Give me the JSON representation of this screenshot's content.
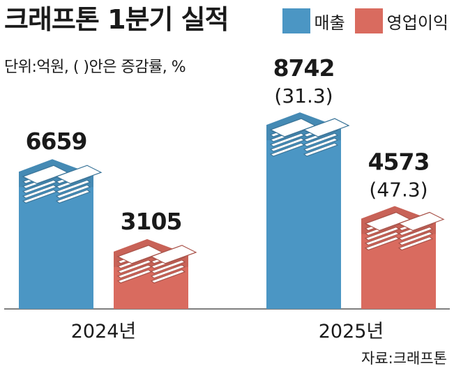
{
  "header": {
    "title": "크래프톤 1분기 실적",
    "unit_note": "단위:억원, (    )안은 증감률, %"
  },
  "legend": [
    {
      "name": "매출",
      "color": "#4b96c4"
    },
    {
      "name": "영업이익",
      "color": "#d96b5f"
    }
  ],
  "source": "자료:크래프톤",
  "chart_data": {
    "type": "bar",
    "categories": [
      "2024년",
      "2025년"
    ],
    "series": [
      {
        "name": "매출",
        "values": [
          6659,
          8742
        ],
        "color": "#4b96c4",
        "value_labels": [
          "6659",
          "8742"
        ],
        "change_labels": [
          "",
          "(31.3)"
        ]
      },
      {
        "name": "영업이익",
        "values": [
          3105,
          4573
        ],
        "color": "#d96b5f",
        "value_labels": [
          "3105",
          "4573"
        ],
        "change_labels": [
          "",
          "(47.3)"
        ]
      }
    ]
  }
}
